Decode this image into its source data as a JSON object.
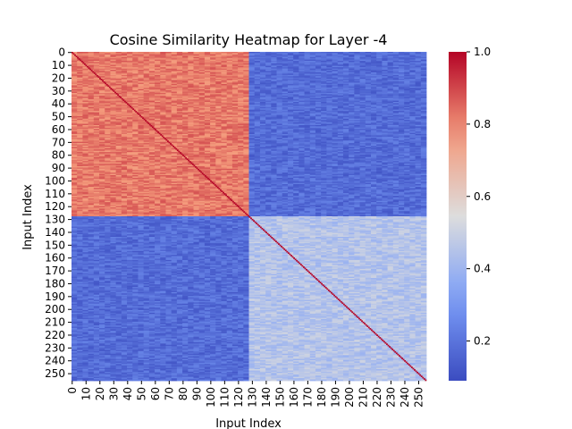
{
  "chart_data": {
    "type": "heatmap",
    "title": "Cosine Similarity Heatmap for Layer -4",
    "xlabel": "Input Index",
    "ylabel": "Input Index",
    "n": 256,
    "ticks": [
      0,
      10,
      20,
      30,
      40,
      50,
      60,
      70,
      80,
      90,
      100,
      110,
      120,
      130,
      140,
      150,
      160,
      170,
      180,
      190,
      200,
      210,
      220,
      230,
      240,
      250
    ],
    "colormap": "coolwarm",
    "color_range": [
      0.09,
      1.0
    ],
    "colorbar_ticks": [
      0.2,
      0.4,
      0.6,
      0.8,
      1.0
    ],
    "colorbar_tick_labels": [
      "0.2",
      "0.4",
      "0.6",
      "0.8",
      "1.0"
    ],
    "blocks": [
      {
        "rows": [
          0,
          127
        ],
        "cols": [
          0,
          127
        ],
        "mean_value": 0.82
      },
      {
        "rows": [
          0,
          127
        ],
        "cols": [
          128,
          255
        ],
        "mean_value": 0.18
      },
      {
        "rows": [
          128,
          255
        ],
        "cols": [
          0,
          127
        ],
        "mean_value": 0.18
      },
      {
        "rows": [
          128,
          255
        ],
        "cols": [
          128,
          255
        ],
        "mean_value": 0.45
      }
    ],
    "diagonal_value": 1.0
  }
}
